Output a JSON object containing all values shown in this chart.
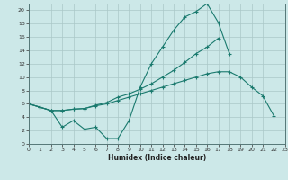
{
  "xlabel": "Humidex (Indice chaleur)",
  "x": [
    0,
    1,
    2,
    3,
    4,
    5,
    6,
    7,
    8,
    9,
    10,
    11,
    12,
    13,
    14,
    15,
    16,
    17,
    18,
    19,
    20,
    21,
    22,
    23
  ],
  "line1": [
    6.0,
    5.5,
    5.0,
    2.5,
    3.5,
    2.2,
    2.5,
    0.8,
    0.8,
    3.5,
    8.5,
    12.0,
    14.5,
    17.0,
    19.0,
    19.8,
    21.0,
    18.2,
    13.5,
    null,
    null,
    null,
    null,
    null
  ],
  "line2": [
    6.0,
    5.5,
    5.0,
    5.0,
    5.2,
    5.3,
    5.8,
    6.2,
    7.0,
    7.5,
    8.2,
    9.0,
    10.0,
    11.0,
    12.2,
    13.5,
    14.5,
    15.8,
    null,
    null,
    null,
    null,
    null,
    null
  ],
  "line3": [
    6.0,
    5.5,
    5.0,
    5.0,
    5.2,
    5.3,
    5.7,
    6.0,
    6.5,
    7.0,
    7.5,
    8.0,
    8.5,
    9.0,
    9.5,
    10.0,
    10.5,
    10.8,
    10.8,
    10.0,
    8.5,
    7.2,
    4.2,
    null
  ],
  "line_color": "#1a7a6e",
  "bg_color": "#cce8e8",
  "grid_color_major": "#aac8c8",
  "grid_color_minor": "#bbdada",
  "xlim": [
    0,
    23
  ],
  "ylim": [
    0,
    21
  ],
  "yticks": [
    0,
    2,
    4,
    6,
    8,
    10,
    12,
    14,
    16,
    18,
    20
  ],
  "xticks": [
    0,
    1,
    2,
    3,
    4,
    5,
    6,
    7,
    8,
    9,
    10,
    11,
    12,
    13,
    14,
    15,
    16,
    17,
    18,
    19,
    20,
    21,
    22,
    23
  ]
}
